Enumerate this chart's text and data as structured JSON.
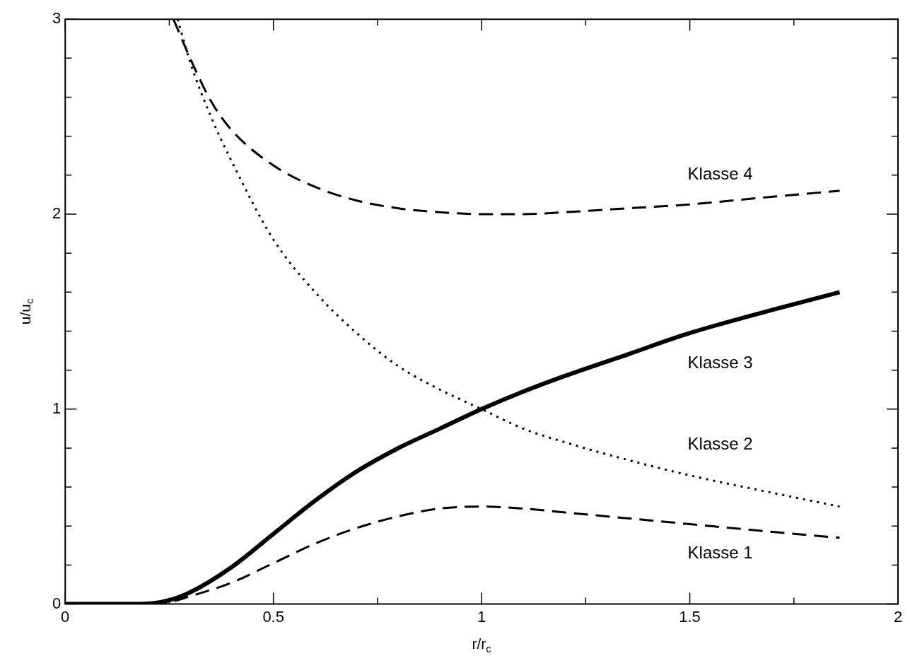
{
  "chart_data": {
    "type": "line",
    "xlabel": "r/r$_{c}$",
    "ylabel": "u/u$_{c}$",
    "xlim": [
      0,
      2
    ],
    "ylim": [
      0,
      3
    ],
    "xticks": [
      0,
      {
        "value": 0.25,
        "label": null
      },
      0.5,
      {
        "value": 0.75,
        "label": null
      },
      1,
      {
        "value": 1.25,
        "label": null
      },
      1.5,
      {
        "value": 1.75,
        "label": null
      },
      2
    ],
    "yticks": [
      0,
      {
        "value": 0.2,
        "label": null
      },
      {
        "value": 0.4,
        "label": null
      },
      {
        "value": 0.6,
        "label": null
      },
      {
        "value": 0.8,
        "label": null
      },
      1,
      {
        "value": 1.2,
        "label": null
      },
      {
        "value": 1.4,
        "label": null
      },
      {
        "value": 1.6,
        "label": null
      },
      {
        "value": 1.8,
        "label": null
      },
      2,
      {
        "value": 2.2,
        "label": null
      },
      {
        "value": 2.4,
        "label": null
      },
      {
        "value": 2.6,
        "label": null
      },
      {
        "value": 2.8,
        "label": null
      },
      3
    ],
    "grid": false,
    "legend": false,
    "marker": "none",
    "series": [
      {
        "name": "Klasse 1",
        "color": "#000000",
        "line_style": "dashed",
        "x": [
          0,
          0.18,
          0.25,
          0.3,
          0.4,
          0.5,
          0.6,
          0.7,
          0.8,
          0.9,
          1.0,
          1.1,
          1.2,
          1.35,
          1.5,
          1.7,
          1.86
        ],
        "values": [
          0,
          0,
          0.01,
          0.04,
          0.11,
          0.21,
          0.31,
          0.39,
          0.45,
          0.49,
          0.5,
          0.49,
          0.47,
          0.44,
          0.41,
          0.37,
          0.34
        ]
      },
      {
        "name": "Klasse 2",
        "color": "#000000",
        "line_style": "dotted",
        "x": [
          0.27,
          0.3,
          0.35,
          0.4,
          0.5,
          0.6,
          0.7,
          0.8,
          0.9,
          1.0,
          1.1,
          1.2,
          1.35,
          1.5,
          1.7,
          1.86
        ],
        "values": [
          3,
          2.78,
          2.5,
          2.27,
          1.87,
          1.6,
          1.39,
          1.22,
          1.1,
          1.0,
          0.9,
          0.83,
          0.74,
          0.66,
          0.57,
          0.5
        ]
      },
      {
        "name": "Klasse 3",
        "color": "#000000",
        "line_style": "solid",
        "x": [
          0,
          0.18,
          0.25,
          0.3,
          0.4,
          0.5,
          0.6,
          0.7,
          0.8,
          0.9,
          1.0,
          1.1,
          1.2,
          1.35,
          1.5,
          1.7,
          1.86
        ],
        "values": [
          0,
          0,
          0.02,
          0.06,
          0.19,
          0.36,
          0.53,
          0.68,
          0.8,
          0.9,
          1.0,
          1.09,
          1.17,
          1.28,
          1.39,
          1.51,
          1.6
        ]
      },
      {
        "name": "Klasse 4",
        "color": "#000000",
        "line_style": "dashed",
        "x": [
          0.26,
          0.3,
          0.35,
          0.4,
          0.5,
          0.6,
          0.7,
          0.8,
          0.9,
          1.0,
          1.1,
          1.2,
          1.35,
          1.5,
          1.7,
          1.86
        ],
        "values": [
          3,
          2.8,
          2.58,
          2.43,
          2.25,
          2.14,
          2.07,
          2.03,
          2.01,
          2.0,
          2.0,
          2.01,
          2.03,
          2.05,
          2.09,
          2.12
        ]
      }
    ]
  }
}
